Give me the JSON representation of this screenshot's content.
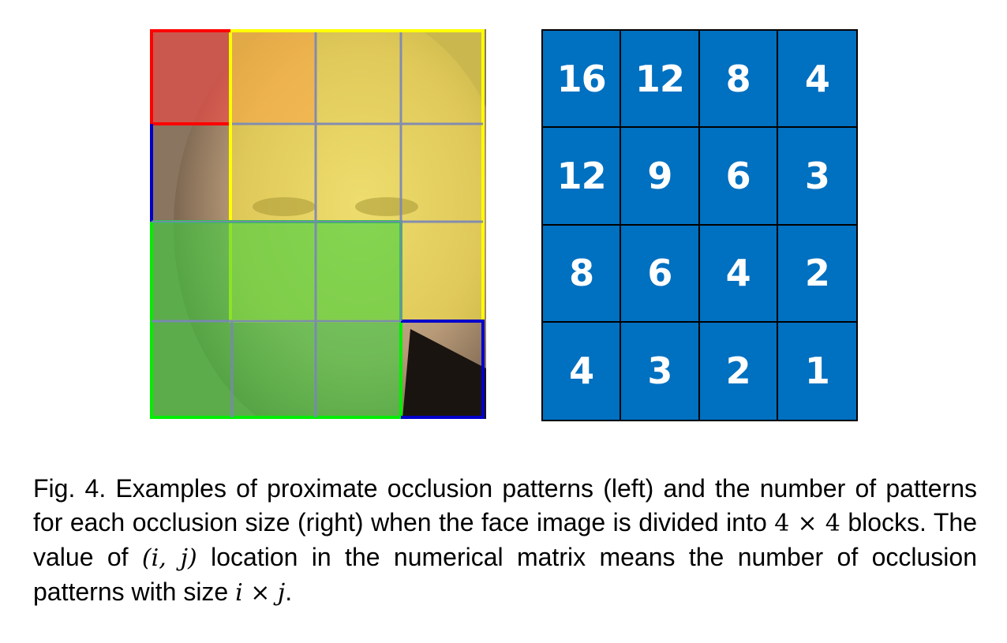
{
  "face_figure": {
    "description_icon": "face-photo-with-occlusion-patterns",
    "pattern_colors": {
      "red": "#ff0000",
      "yellow": "#ffff00",
      "green": "#00ee00",
      "blue": "#0000cc",
      "grid": "#7a86b8"
    }
  },
  "matrix": {
    "background": "#0070c0",
    "rows": [
      [
        "16",
        "12",
        "8",
        "4"
      ],
      [
        "12",
        "9",
        "6",
        "3"
      ],
      [
        "8",
        "6",
        "4",
        "2"
      ],
      [
        "4",
        "3",
        "2",
        "1"
      ]
    ]
  },
  "caption": {
    "part1": "Fig. 4. Examples of proximate occlusion patterns (left) and the number of patterns for each occlusion size (right) when the face image is divided into ",
    "math1": "4 × 4",
    "part2": " blocks. The value of ",
    "math2": "(i, j)",
    "part3": " location in the numerical matrix means the number of occlusion patterns with size ",
    "math3": "i × j",
    "part4": "."
  }
}
